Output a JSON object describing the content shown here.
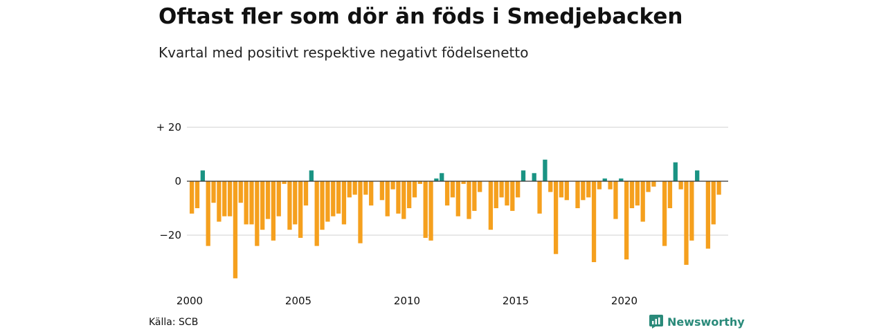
{
  "header": {
    "title": "Oftast fler som dör än föds i Smedjebacken",
    "subtitle": "Kvartal med positivt respektive negativt födelsenetto"
  },
  "footer": {
    "source": "Källa: SCB",
    "brand": "Newsworthy",
    "brand_icon": "newsworthy-logo-icon"
  },
  "colors": {
    "positive": "#1a9383",
    "negative": "#f5a01e",
    "grid": "#d9d9d9",
    "zero_line": "#333333",
    "brand": "#2a8a7a"
  },
  "chart_data": {
    "type": "bar",
    "title": "Oftast fler som dör än föds i Smedjebacken",
    "subtitle": "Kvartal med positivt respektive negativt födelsenetto",
    "xlabel": "",
    "ylabel": "",
    "start": "2000 Q1",
    "ylim": [
      -37,
      20
    ],
    "yticks": [
      20,
      0,
      -20
    ],
    "ytick_labels": [
      "+ 20",
      "0",
      "−20"
    ],
    "xticks": [
      "2000",
      "2005",
      "2010",
      "2015",
      "2020"
    ],
    "grid": true,
    "legend": "none",
    "values": [
      -12,
      -10,
      4,
      -24,
      -8,
      -15,
      -13,
      -13,
      -36,
      -8,
      -16,
      -16,
      -24,
      -18,
      -14,
      -22,
      -13,
      -1,
      -18,
      -16,
      -21,
      -9,
      4,
      -24,
      -18,
      -15,
      -13,
      -12,
      -16,
      -6,
      -5,
      -23,
      -5,
      -9,
      0,
      -7,
      -13,
      -3,
      -12,
      -14,
      -10,
      -6,
      -1,
      -21,
      -22,
      1,
      3,
      -9,
      -6,
      -13,
      -1,
      -14,
      -11,
      -4,
      0,
      -18,
      -10,
      -6,
      -9,
      -11,
      -6,
      4,
      0,
      3,
      -12,
      8,
      -4,
      -27,
      -6,
      -7,
      0,
      -10,
      -7,
      -6,
      -30,
      -3,
      1,
      -3,
      -14,
      1,
      -29,
      -10,
      -9,
      -15,
      -4,
      -2,
      0,
      -24,
      -10,
      7,
      -3,
      -31,
      -22,
      4,
      0,
      -25,
      -16,
      -5
    ]
  }
}
